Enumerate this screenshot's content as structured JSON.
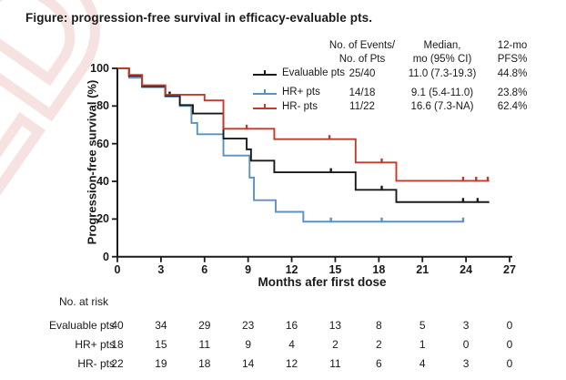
{
  "title": "Figure: progression-free survival in efficacy-evaluable pts.",
  "watermark_text": "ED",
  "watermark_color": "#e9a6a6",
  "chart_data": {
    "type": "line",
    "subtype": "kaplan-meier-step",
    "xlabel": "Months afer first dose",
    "ylabel": "Progression-free survival (%)",
    "xlim": [
      0,
      27
    ],
    "ylim": [
      0,
      100
    ],
    "xticks": [
      0,
      3,
      6,
      9,
      12,
      15,
      18,
      21,
      24,
      27
    ],
    "yticks": [
      0,
      20,
      40,
      60,
      80,
      100
    ],
    "grid": "off",
    "legend_position": "top-right-inside",
    "stats_header": {
      "events_line1": "No. of Events/",
      "events_line2": "No. of Pts",
      "median_line1": "Median,",
      "median_line2": "mo (95% CI)",
      "pfs_line1": "12-mo",
      "pfs_line2": "PFS%"
    },
    "series": [
      {
        "name": "Evaluable pts",
        "color": "#1a1a1a",
        "events": "25/40",
        "median": "11.0 (7.3-19.3)",
        "pfs_12mo": "44.8%",
        "steps": [
          [
            0,
            100
          ],
          [
            0.8,
            96
          ],
          [
            1.7,
            90.5
          ],
          [
            3.3,
            85.5
          ],
          [
            4.3,
            80.5
          ],
          [
            5.2,
            76
          ],
          [
            7.3,
            62.7
          ],
          [
            8.9,
            57
          ],
          [
            9.2,
            51
          ],
          [
            10.8,
            44.8
          ],
          [
            16.4,
            35.5
          ],
          [
            19.2,
            29
          ]
        ],
        "end_month": 25.6,
        "censors": [
          [
            3.6,
            85.5
          ],
          [
            14.7,
            44.8
          ],
          [
            18.2,
            35.5
          ],
          [
            23.8,
            29
          ],
          [
            24.8,
            29
          ]
        ]
      },
      {
        "name": "HR+ pts",
        "color": "#5b92c4",
        "events": "14/18",
        "median": "9.1 (5.4-11.0)",
        "pfs_12mo": "23.8%",
        "steps": [
          [
            0,
            100
          ],
          [
            0.8,
            95
          ],
          [
            1.7,
            90
          ],
          [
            3.3,
            85
          ],
          [
            4.3,
            80
          ],
          [
            5.1,
            71
          ],
          [
            5.5,
            65
          ],
          [
            7.3,
            53.7
          ],
          [
            9.1,
            42
          ],
          [
            9.4,
            30
          ],
          [
            10.9,
            23.8
          ],
          [
            12.8,
            18.6
          ]
        ],
        "end_month": 23.8,
        "censors": [
          [
            14.7,
            18.6
          ],
          [
            18.2,
            18.6
          ],
          [
            23.8,
            18.6
          ]
        ]
      },
      {
        "name": "HR- pts",
        "color": "#c13b2c",
        "events": "11/22",
        "median": "16.6 (7.3-NA)",
        "pfs_12mo": "62.4%",
        "steps": [
          [
            0,
            100
          ],
          [
            0.8,
            96.5
          ],
          [
            1.7,
            91
          ],
          [
            3.3,
            86
          ],
          [
            6.0,
            83
          ],
          [
            7.3,
            67.9
          ],
          [
            10.8,
            62.4
          ],
          [
            16.4,
            50
          ],
          [
            19.2,
            40.3
          ]
        ],
        "end_month": 25.6,
        "censors": [
          [
            8.9,
            67.9
          ],
          [
            14.6,
            62.4
          ],
          [
            18.2,
            50
          ],
          [
            23.8,
            40.3
          ],
          [
            24.7,
            40.3
          ],
          [
            25.5,
            40.3
          ]
        ]
      }
    ],
    "risk_table": {
      "title": "No. at risk",
      "months": [
        0,
        3,
        6,
        9,
        12,
        15,
        18,
        21,
        24,
        27
      ],
      "rows": [
        {
          "name": "Evaluable pts",
          "counts": [
            40,
            34,
            29,
            23,
            16,
            13,
            8,
            5,
            3,
            0
          ]
        },
        {
          "name": "HR+ pts",
          "counts": [
            18,
            15,
            11,
            9,
            4,
            2,
            2,
            1,
            0,
            0
          ]
        },
        {
          "name": "HR- pts",
          "counts": [
            22,
            19,
            18,
            14,
            12,
            11,
            6,
            4,
            3,
            0
          ]
        }
      ]
    }
  }
}
